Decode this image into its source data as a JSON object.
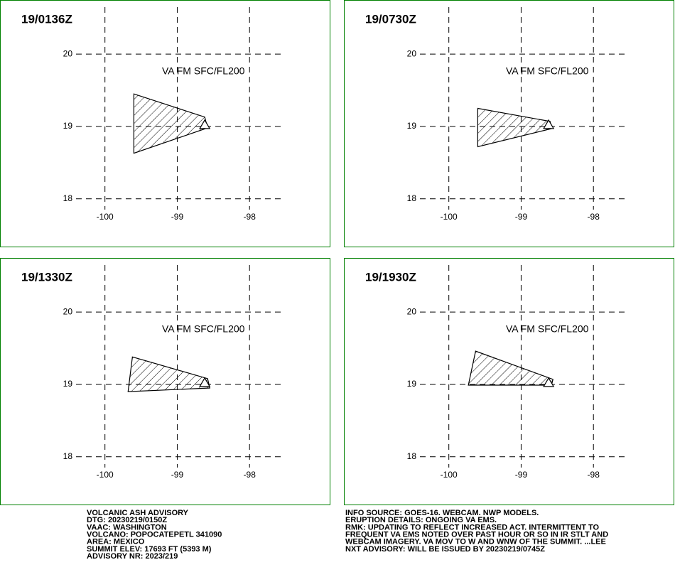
{
  "xticks": [
    -100,
    -99,
    -98
  ],
  "yticks": [
    20,
    19,
    18
  ],
  "xlim": [
    -100.4,
    -97.55
  ],
  "ylim": [
    17.85,
    20.65
  ],
  "volcano": [
    -98.62,
    19.02
  ],
  "panels": [
    {
      "time": "19/0136Z",
      "annotation": "VA FM SFC/FL200",
      "polygon": {
        "lon": [
          -99.6,
          -98.62,
          -98.58,
          -99.6
        ],
        "lat": [
          19.45,
          19.13,
          18.98,
          18.63
        ]
      }
    },
    {
      "time": "19/0730Z",
      "annotation": "VA FM SFC/FL200",
      "polygon": {
        "lon": [
          -99.6,
          -98.6,
          -98.58,
          -99.6
        ],
        "lat": [
          19.25,
          19.07,
          18.97,
          18.72
        ]
      }
    },
    {
      "time": "19/1330Z",
      "annotation": "VA FM SFC/FL200",
      "polygon": {
        "lon": [
          -99.62,
          -98.58,
          -98.55,
          -99.68
        ],
        "lat": [
          19.38,
          19.08,
          18.95,
          18.9
        ]
      }
    },
    {
      "time": "19/1930Z",
      "annotation": "VA FM SFC/FL200",
      "polygon": {
        "lon": [
          -99.63,
          -98.56,
          -98.58,
          -99.73
        ],
        "lat": [
          19.46,
          19.07,
          18.99,
          18.99
        ]
      }
    }
  ],
  "info_left": [
    "VOLCANIC ASH ADVISORY",
    "DTG: 20230219/0150Z",
    "VAAC: WASHINGTON",
    "VOLCANO: POPOCATEPETL 341090",
    "AREA: MEXICO",
    "SUMMIT ELEV: 17693 FT (5393 M)",
    "ADVISORY NR: 2023/219"
  ],
  "info_right": [
    "INFO SOURCE: GOES-16. WEBCAM. NWP MODELS.",
    "ERUPTION DETAILS: ONGOING VA EMS.",
    "RMK: UPDATING TO REFLECT INCREASED ACT. INTERMITTENT TO",
    "FREQUENT VA EMS NOTED OVER PAST HOUR OR SO IN IR STLT AND",
    "WEBCAM IMAGERY. VA MOV TO W AND WNW OF THE SUMMIT. ...LEE",
    "NXT ADVISORY: WILL BE ISSUED BY 20230219/0745Z"
  ]
}
